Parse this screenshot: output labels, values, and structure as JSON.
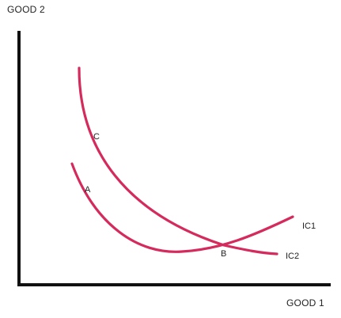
{
  "axes": {
    "y_label": "GOOD 2",
    "x_label": "GOOD 1",
    "color": "#111111"
  },
  "curves": [
    {
      "name": "IC1",
      "label": "IC1",
      "color": "#d42a5c"
    },
    {
      "name": "IC2",
      "label": "IC2",
      "color": "#d42a5c"
    }
  ],
  "points": [
    {
      "label": "A"
    },
    {
      "label": "B"
    },
    {
      "label": "C"
    }
  ]
}
